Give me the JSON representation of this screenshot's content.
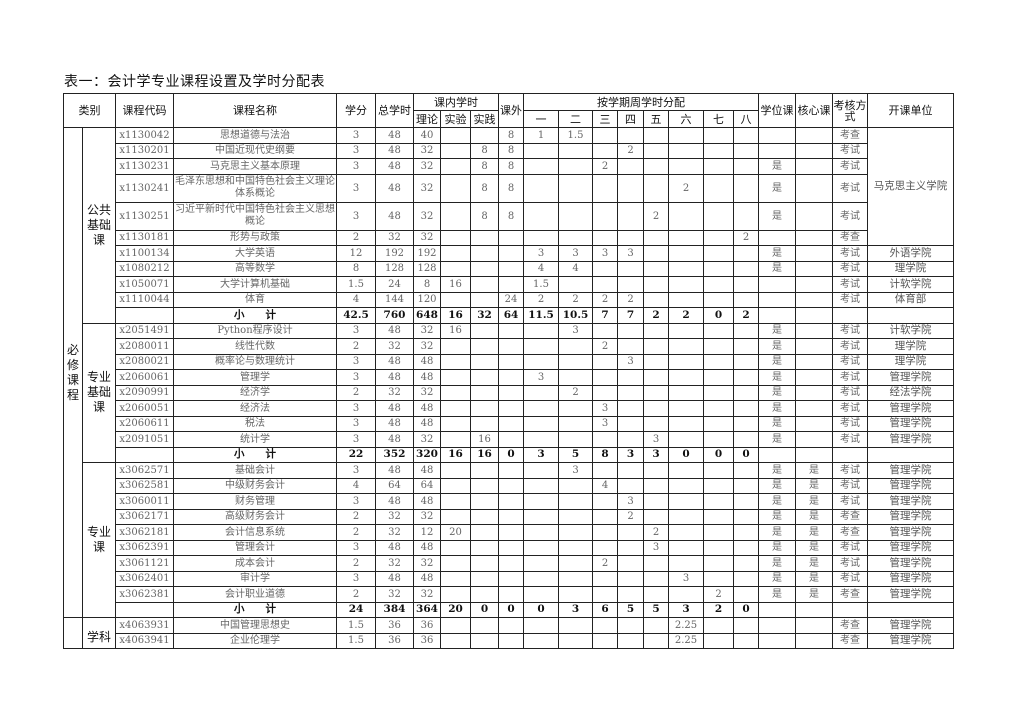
{
  "title": "表一：会计学专业课程设置及学时分配表",
  "headers": {
    "category": "类别",
    "code": "课程代码",
    "name": "课程名称",
    "credit": "学分",
    "total_hours": "总学时",
    "in_class": "课内学时",
    "theory": "理论",
    "lab": "实验",
    "practice": "实践",
    "extra": "课外",
    "semester_dist": "按学期周学时分配",
    "semesters": [
      "一",
      "二",
      "三",
      "四",
      "五",
      "六",
      "七",
      "八"
    ],
    "degree": "学位课",
    "core": "核心课",
    "exam": "考核方式",
    "dept": "开课单位"
  },
  "required_label": "必修课程",
  "subtotal_label": "小　　计",
  "sections": [
    {
      "label": "公共基础课",
      "merged_dept": "马克思主义学院",
      "rows": [
        {
          "c": [
            "x1130042",
            "思想道德与法治",
            "3",
            "48",
            "40",
            "",
            "",
            "8",
            "1",
            "1.5",
            "",
            "",
            "",
            "",
            "",
            "",
            "",
            "",
            "考查"
          ],
          "dept": ""
        },
        {
          "c": [
            "x1130201",
            "中国近现代史纲要",
            "3",
            "48",
            "32",
            "",
            "8",
            "8",
            "",
            "",
            "",
            "2",
            "",
            "",
            "",
            "",
            "",
            "",
            "考试"
          ],
          "dept": ""
        },
        {
          "c": [
            "x1130231",
            "马克思主义基本原理",
            "3",
            "48",
            "32",
            "",
            "8",
            "8",
            "",
            "",
            "2",
            "",
            "",
            "",
            "",
            "",
            "是",
            "",
            "考试"
          ],
          "dept": ""
        },
        {
          "c": [
            "x1130241",
            "毛泽东思想和中国特色社会主义理论体系概论",
            "3",
            "48",
            "32",
            "",
            "8",
            "8",
            "",
            "",
            "",
            "",
            "",
            "2",
            "",
            "",
            "是",
            "",
            "考试"
          ],
          "dept": "",
          "double": true
        },
        {
          "c": [
            "x1130251",
            "习近平新时代中国特色社会主义思想概论",
            "3",
            "48",
            "32",
            "",
            "8",
            "8",
            "",
            "",
            "",
            "",
            "2",
            "",
            "",
            "",
            "是",
            "",
            "考试"
          ],
          "dept": "",
          "double": true
        },
        {
          "c": [
            "x1130181",
            "形势与政策",
            "2",
            "32",
            "32",
            "",
            "",
            "",
            "",
            "",
            "",
            "",
            "",
            "",
            "",
            "2",
            "",
            "",
            "考查"
          ],
          "dept": ""
        },
        {
          "c": [
            "x1100134",
            "大学英语",
            "12",
            "192",
            "192",
            "",
            "",
            "",
            "3",
            "3",
            "3",
            "3",
            "",
            "",
            "",
            "",
            "是",
            "",
            "考试"
          ],
          "dept": "外语学院"
        },
        {
          "c": [
            "x1080212",
            "高等数学",
            "8",
            "128",
            "128",
            "",
            "",
            "",
            "4",
            "4",
            "",
            "",
            "",
            "",
            "",
            "",
            "是",
            "",
            "考试"
          ],
          "dept": "理学院"
        },
        {
          "c": [
            "x1050071",
            "大学计算机基础",
            "1.5",
            "24",
            "8",
            "16",
            "",
            "",
            "1.5",
            "",
            "",
            "",
            "",
            "",
            "",
            "",
            "",
            "",
            "考试"
          ],
          "dept": "计软学院"
        },
        {
          "c": [
            "x1110044",
            "体育",
            "4",
            "144",
            "120",
            "",
            "",
            "24",
            "2",
            "2",
            "2",
            "2",
            "",
            "",
            "",
            "",
            "",
            "",
            "考试"
          ],
          "dept": "体育部"
        }
      ],
      "subtotal": [
        "42.5",
        "760",
        "648",
        "16",
        "32",
        "64",
        "11.5",
        "10.5",
        "7",
        "7",
        "2",
        "2",
        "0",
        "2"
      ]
    },
    {
      "label": "专业基础课",
      "rows": [
        {
          "c": [
            "x2051491",
            "Python程序设计",
            "3",
            "48",
            "32",
            "16",
            "",
            "",
            "",
            "3",
            "",
            "",
            "",
            "",
            "",
            "",
            "是",
            "",
            "考试"
          ],
          "dept": "计软学院"
        },
        {
          "c": [
            "x2080011",
            "线性代数",
            "2",
            "32",
            "32",
            "",
            "",
            "",
            "",
            "",
            "2",
            "",
            "",
            "",
            "",
            "",
            "是",
            "",
            "考试"
          ],
          "dept": "理学院"
        },
        {
          "c": [
            "x2080021",
            "概率论与数理统计",
            "3",
            "48",
            "48",
            "",
            "",
            "",
            "",
            "",
            "",
            "3",
            "",
            "",
            "",
            "",
            "是",
            "",
            "考试"
          ],
          "dept": "理学院"
        },
        {
          "c": [
            "x2060061",
            "管理学",
            "3",
            "48",
            "48",
            "",
            "",
            "",
            "3",
            "",
            "",
            "",
            "",
            "",
            "",
            "",
            "是",
            "",
            "考试"
          ],
          "dept": "管理学院"
        },
        {
          "c": [
            "x2090991",
            "经济学",
            "2",
            "32",
            "32",
            "",
            "",
            "",
            "",
            "2",
            "",
            "",
            "",
            "",
            "",
            "",
            "是",
            "",
            "考试"
          ],
          "dept": "经法学院"
        },
        {
          "c": [
            "x2060051",
            "经济法",
            "3",
            "48",
            "48",
            "",
            "",
            "",
            "",
            "",
            "3",
            "",
            "",
            "",
            "",
            "",
            "是",
            "",
            "考试"
          ],
          "dept": "管理学院"
        },
        {
          "c": [
            "x2060611",
            "税法",
            "3",
            "48",
            "48",
            "",
            "",
            "",
            "",
            "",
            "3",
            "",
            "",
            "",
            "",
            "",
            "是",
            "",
            "考试"
          ],
          "dept": "管理学院"
        },
        {
          "c": [
            "x2091051",
            "统计学",
            "3",
            "48",
            "32",
            "",
            "16",
            "",
            "",
            "",
            "",
            "",
            "3",
            "",
            "",
            "",
            "是",
            "",
            "考试"
          ],
          "dept": "管理学院"
        }
      ],
      "subtotal": [
        "22",
        "352",
        "320",
        "16",
        "16",
        "0",
        "3",
        "5",
        "8",
        "3",
        "3",
        "0",
        "0",
        "0"
      ]
    },
    {
      "label": "专业课",
      "rows": [
        {
          "c": [
            "x3062571",
            "基础会计",
            "3",
            "48",
            "48",
            "",
            "",
            "",
            "",
            "3",
            "",
            "",
            "",
            "",
            "",
            "",
            "是",
            "是",
            "考试"
          ],
          "dept": "管理学院"
        },
        {
          "c": [
            "x3062581",
            "中级财务会计",
            "4",
            "64",
            "64",
            "",
            "",
            "",
            "",
            "",
            "4",
            "",
            "",
            "",
            "",
            "",
            "是",
            "是",
            "考试"
          ],
          "dept": "管理学院"
        },
        {
          "c": [
            "x3060011",
            "财务管理",
            "3",
            "48",
            "48",
            "",
            "",
            "",
            "",
            "",
            "",
            "3",
            "",
            "",
            "",
            "",
            "是",
            "是",
            "考试"
          ],
          "dept": "管理学院"
        },
        {
          "c": [
            "x3062171",
            "高级财务会计",
            "2",
            "32",
            "32",
            "",
            "",
            "",
            "",
            "",
            "",
            "2",
            "",
            "",
            "",
            "",
            "是",
            "是",
            "考查"
          ],
          "dept": "管理学院"
        },
        {
          "c": [
            "x3062181",
            "会计信息系统",
            "2",
            "32",
            "12",
            "20",
            "",
            "",
            "",
            "",
            "",
            "",
            "2",
            "",
            "",
            "",
            "是",
            "是",
            "考查"
          ],
          "dept": "管理学院"
        },
        {
          "c": [
            "x3062391",
            "管理会计",
            "3",
            "48",
            "48",
            "",
            "",
            "",
            "",
            "",
            "",
            "",
            "3",
            "",
            "",
            "",
            "是",
            "是",
            "考试"
          ],
          "dept": "管理学院"
        },
        {
          "c": [
            "x3061121",
            "成本会计",
            "2",
            "32",
            "32",
            "",
            "",
            "",
            "",
            "",
            "2",
            "",
            "",
            "",
            "",
            "",
            "是",
            "是",
            "考试"
          ],
          "dept": "管理学院"
        },
        {
          "c": [
            "x3062401",
            "审计学",
            "3",
            "48",
            "48",
            "",
            "",
            "",
            "",
            "",
            "",
            "",
            "",
            "3",
            "",
            "",
            "是",
            "是",
            "考试"
          ],
          "dept": "管理学院"
        },
        {
          "c": [
            "x3062381",
            "会计职业道德",
            "2",
            "32",
            "32",
            "",
            "",
            "",
            "",
            "",
            "",
            "",
            "",
            "",
            "2",
            "",
            "是",
            "是",
            "考查"
          ],
          "dept": "管理学院"
        }
      ],
      "subtotal": [
        "24",
        "384",
        "364",
        "20",
        "0",
        "0",
        "0",
        "3",
        "6",
        "5",
        "5",
        "3",
        "2",
        "0"
      ]
    },
    {
      "label": "学科",
      "rows": [
        {
          "c": [
            "x4063931",
            "中国管理思想史",
            "1.5",
            "36",
            "36",
            "",
            "",
            "",
            "",
            "",
            "",
            "",
            "",
            "2.25",
            "",
            "",
            "",
            "",
            "考查"
          ],
          "dept": "管理学院"
        },
        {
          "c": [
            "x4063941",
            "企业伦理学",
            "1.5",
            "36",
            "36",
            "",
            "",
            "",
            "",
            "",
            "",
            "",
            "",
            "2.25",
            "",
            "",
            "",
            "",
            "考查"
          ],
          "dept": "管理学院"
        }
      ]
    }
  ]
}
